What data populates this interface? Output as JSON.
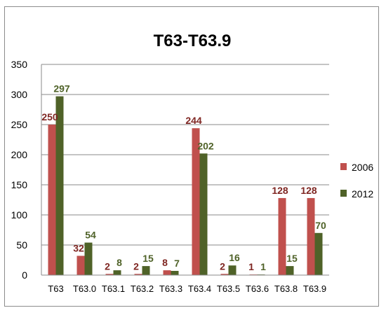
{
  "chart_data": {
    "type": "bar",
    "title": "T63-T63.9",
    "categories": [
      "T63",
      "T63.0",
      "T63.1",
      "T63.2",
      "T63.3",
      "T63.4",
      "T63.5",
      "T63.6",
      "T63.8",
      "T63.9"
    ],
    "series": [
      {
        "name": "2006",
        "color": "#c0504d",
        "label_color": "#7f2622",
        "values": [
          250,
          32,
          2,
          2,
          8,
          244,
          2,
          1,
          128,
          128
        ]
      },
      {
        "name": "2012",
        "color": "#4f6228",
        "label_color": "#4f6228",
        "values": [
          297,
          54,
          8,
          15,
          7,
          202,
          16,
          1,
          15,
          70
        ]
      }
    ],
    "ylim": [
      0,
      350
    ],
    "yticks": [
      0,
      50,
      100,
      150,
      200,
      250,
      300,
      350
    ],
    "grid": true,
    "legend": "right",
    "xlabel": "",
    "ylabel": ""
  }
}
